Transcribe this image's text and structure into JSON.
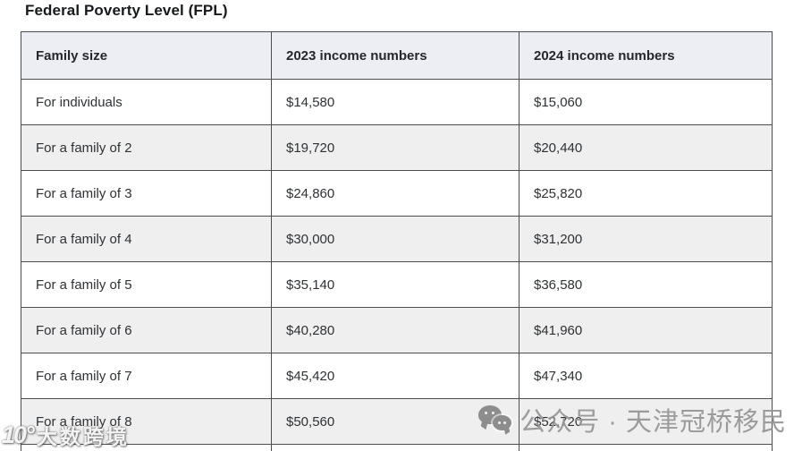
{
  "page": {
    "title": "Federal Poverty Level (FPL)"
  },
  "table": {
    "headers": [
      "Family size",
      "2023 income numbers",
      "2024 income numbers"
    ],
    "rows": [
      {
        "family_size": "For individuals",
        "income_2023": "$14,580",
        "income_2024": "$15,060"
      },
      {
        "family_size": "For a family of 2",
        "income_2023": "$19,720",
        "income_2024": "$20,440"
      },
      {
        "family_size": "For a family of 3",
        "income_2023": "$24,860",
        "income_2024": "$25,820"
      },
      {
        "family_size": "For a family of 4",
        "income_2023": "$30,000",
        "income_2024": "$31,200"
      },
      {
        "family_size": "For a family of 5",
        "income_2023": "$35,140",
        "income_2024": "$36,580"
      },
      {
        "family_size": "For a family of 6",
        "income_2023": "$40,280",
        "income_2024": "$41,960"
      },
      {
        "family_size": "For a family of 7",
        "income_2023": "$45,420",
        "income_2024": "$47,340"
      },
      {
        "family_size": "For a family of 8",
        "income_2023": "$50,560",
        "income_2024": "$52,720"
      }
    ]
  },
  "watermarks": {
    "bottom_left": {
      "logo_glyph": "10°",
      "text": "大数跨境"
    },
    "bottom_right": {
      "icon": "wechat-icon",
      "text": "公众号 · 天津冠桥移民"
    }
  },
  "colors": {
    "header_bg": "#eceef4",
    "stripe_bg": "#efefef",
    "border": "#4a4e53",
    "watermark_gray": "#969696"
  }
}
